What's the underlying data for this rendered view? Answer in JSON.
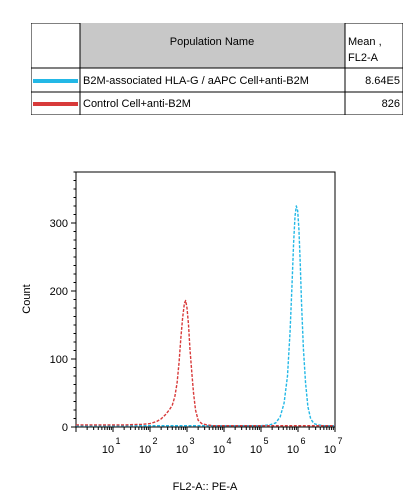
{
  "legend_table": {
    "header": {
      "population": "Population Name",
      "mean_line1": "Mean ,",
      "mean_line2": "FL2-A"
    },
    "rows": [
      {
        "label": "B2M-associated HLA-G / aAPC Cell+anti-B2M",
        "value": "8.64E5",
        "color": "#23b8e6"
      },
      {
        "label": "Control Cell+anti-B2M",
        "value": "826",
        "color": "#d83a3a"
      }
    ]
  },
  "chart_data": {
    "type": "line",
    "xlabel": "FL2-A:: PE-A",
    "ylabel": "Count",
    "x_scale": "log",
    "xlim": [
      1,
      10000000
    ],
    "ylim": [
      0,
      375
    ],
    "y_ticks": [
      0,
      100,
      200,
      300
    ],
    "x_tick_labels": [
      {
        "base": "10",
        "exp": "1"
      },
      {
        "base": "10",
        "exp": "2"
      },
      {
        "base": "10",
        "exp": "3"
      },
      {
        "base": "10",
        "exp": "4"
      },
      {
        "base": "10",
        "exp": "5"
      },
      {
        "base": "10",
        "exp": "6"
      },
      {
        "base": "10",
        "exp": "7"
      }
    ],
    "series": [
      {
        "color": "#23b8e6",
        "x": [
          1,
          100000,
          170000,
          250000,
          330000,
          420000,
          520000,
          610000,
          690000,
          760000,
          830000,
          900000,
          980000,
          1060000,
          1150000,
          1250000,
          1400000,
          1600000,
          1850000,
          2200000,
          2700000,
          3500000,
          5000000,
          10000000
        ],
        "y": [
          2,
          2,
          3,
          6,
          15,
          35,
          75,
          140,
          210,
          270,
          310,
          325,
          318,
          290,
          240,
          180,
          115,
          65,
          30,
          12,
          5,
          3,
          2,
          2
        ]
      },
      {
        "color": "#d83a3a",
        "x": [
          1,
          20,
          60,
          100,
          150,
          200,
          260,
          330,
          400,
          470,
          540,
          610,
          680,
          760,
          850,
          920,
          1000,
          1100,
          1200,
          1350,
          1500,
          1700,
          2000,
          2500,
          3500,
          5000,
          10000000
        ],
        "y": [
          3,
          3,
          4,
          5,
          8,
          12,
          18,
          25,
          32,
          45,
          65,
          95,
          130,
          160,
          182,
          186,
          175,
          150,
          115,
          80,
          50,
          25,
          10,
          5,
          3,
          2,
          2
        ]
      }
    ]
  }
}
